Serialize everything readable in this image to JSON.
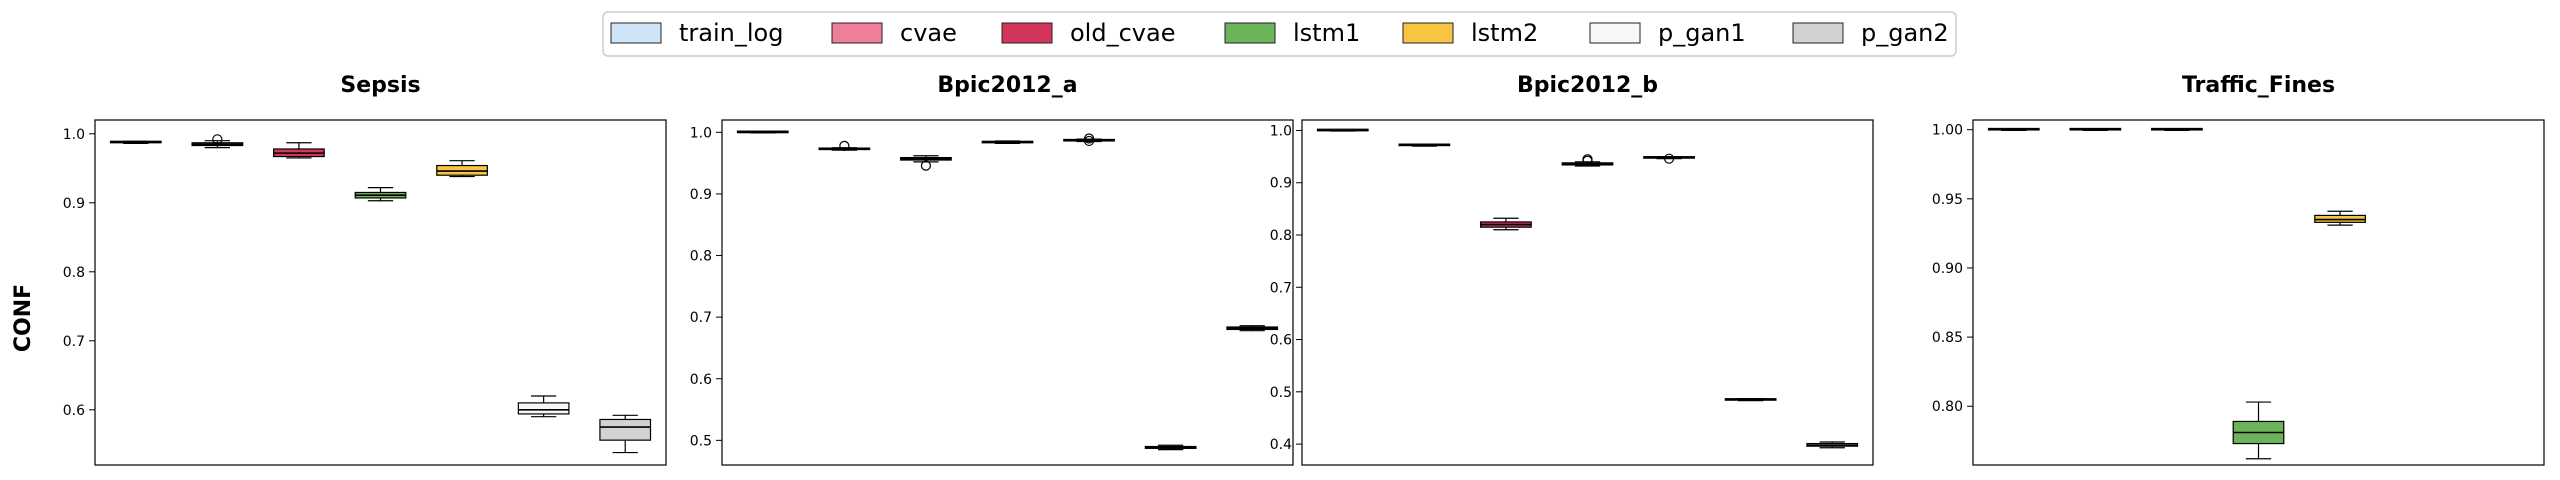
{
  "legend": {
    "position": "top-center",
    "entries": [
      {
        "name": "train_log",
        "color": "#cfe4f7"
      },
      {
        "name": "cvae",
        "color": "#ef7f99"
      },
      {
        "name": "old_cvae",
        "color": "#d3355b"
      },
      {
        "name": "lstm1",
        "color": "#6db35a"
      },
      {
        "name": "lstm2",
        "color": "#f8c542"
      },
      {
        "name": "p_gan1",
        "color": "#f7f7f7"
      },
      {
        "name": "p_gan2",
        "color": "#d2d2d2"
      }
    ]
  },
  "ylabel": "CONF",
  "chart_data": [
    {
      "type": "box",
      "title": "Sepsis",
      "ylim": [
        0.52,
        1.02
      ],
      "yticks": [
        "0.6",
        "0.7",
        "0.8",
        "0.9",
        "1.0"
      ],
      "boxes": [
        {
          "series": "train_log",
          "min": 0.986,
          "q1": 0.987,
          "median": 0.988,
          "q3": 0.988,
          "max": 0.989,
          "outliers": []
        },
        {
          "series": "cvae",
          "min": 0.98,
          "q1": 0.983,
          "median": 0.985,
          "q3": 0.987,
          "max": 0.99,
          "outliers": [
            0.992
          ]
        },
        {
          "series": "old_cvae",
          "min": 0.965,
          "q1": 0.967,
          "median": 0.972,
          "q3": 0.978,
          "max": 0.987,
          "outliers": []
        },
        {
          "series": "lstm1",
          "min": 0.903,
          "q1": 0.907,
          "median": 0.911,
          "q3": 0.915,
          "max": 0.922,
          "outliers": []
        },
        {
          "series": "lstm2",
          "min": 0.938,
          "q1": 0.94,
          "median": 0.946,
          "q3": 0.954,
          "max": 0.961,
          "outliers": []
        },
        {
          "series": "p_gan1",
          "min": 0.59,
          "q1": 0.594,
          "median": 0.6,
          "q3": 0.61,
          "max": 0.62,
          "outliers": []
        },
        {
          "series": "p_gan2",
          "min": 0.538,
          "q1": 0.556,
          "median": 0.575,
          "q3": 0.586,
          "max": 0.592,
          "outliers": []
        }
      ]
    },
    {
      "type": "box",
      "title": "Bpic2012_a",
      "ylim": [
        0.46,
        1.02
      ],
      "yticks": [
        "0.5",
        "0.6",
        "0.7",
        "0.8",
        "0.9",
        "1.0"
      ],
      "boxes": [
        {
          "series": "train_log",
          "min": 0.999,
          "q1": 0.9995,
          "median": 1.0,
          "q3": 1.0,
          "max": 1.0,
          "outliers": []
        },
        {
          "series": "cvae",
          "min": 0.971,
          "q1": 0.972,
          "median": 0.973,
          "q3": 0.974,
          "max": 0.975,
          "outliers": [
            0.978
          ]
        },
        {
          "series": "old_cvae",
          "min": 0.952,
          "q1": 0.955,
          "median": 0.957,
          "q3": 0.959,
          "max": 0.962,
          "outliers": [
            0.946
          ]
        },
        {
          "series": "lstm1",
          "min": 0.982,
          "q1": 0.983,
          "median": 0.984,
          "q3": 0.985,
          "max": 0.986,
          "outliers": []
        },
        {
          "series": "lstm2",
          "min": 0.985,
          "q1": 0.986,
          "median": 0.987,
          "q3": 0.988,
          "max": 0.989,
          "outliers": [
            0.986,
            0.99
          ]
        },
        {
          "series": "p_gan1",
          "min": 0.485,
          "q1": 0.487,
          "median": 0.488,
          "q3": 0.49,
          "max": 0.492,
          "outliers": []
        },
        {
          "series": "p_gan2",
          "min": 0.678,
          "q1": 0.68,
          "median": 0.682,
          "q3": 0.684,
          "max": 0.686,
          "outliers": []
        }
      ]
    },
    {
      "type": "box",
      "title": "Bpic2012_b",
      "ylim": [
        0.36,
        1.02
      ],
      "yticks": [
        "0.4",
        "0.5",
        "0.6",
        "0.7",
        "0.8",
        "0.9",
        "1.0"
      ],
      "boxes": [
        {
          "series": "train_log",
          "min": 0.999,
          "q1": 0.9995,
          "median": 1.0,
          "q3": 1.0,
          "max": 1.0,
          "outliers": []
        },
        {
          "series": "cvae",
          "min": 0.97,
          "q1": 0.971,
          "median": 0.972,
          "q3": 0.973,
          "max": 0.974,
          "outliers": []
        },
        {
          "series": "old_cvae",
          "min": 0.81,
          "q1": 0.815,
          "median": 0.82,
          "q3": 0.825,
          "max": 0.832,
          "outliers": []
        },
        {
          "series": "lstm1",
          "min": 0.932,
          "q1": 0.934,
          "median": 0.936,
          "q3": 0.938,
          "max": 0.94,
          "outliers": [
            0.942,
            0.945
          ]
        },
        {
          "series": "lstm2",
          "min": 0.946,
          "q1": 0.947,
          "median": 0.948,
          "q3": 0.949,
          "max": 0.95,
          "outliers": [
            0.946
          ]
        },
        {
          "series": "p_gan1",
          "min": 0.483,
          "q1": 0.484,
          "median": 0.485,
          "q3": 0.486,
          "max": 0.487,
          "outliers": []
        },
        {
          "series": "p_gan2",
          "min": 0.393,
          "q1": 0.396,
          "median": 0.398,
          "q3": 0.401,
          "max": 0.404,
          "outliers": []
        }
      ]
    },
    {
      "type": "box",
      "title": "Traffic_Fines",
      "ylim": [
        0.7575,
        1.007
      ],
      "yticks": [
        "0.80",
        "0.85",
        "0.90",
        "0.95",
        "1.00"
      ],
      "boxes": [
        {
          "series": "train_log",
          "min": 0.9995,
          "q1": 0.9998,
          "median": 1.0,
          "q3": 1.0,
          "max": 1.0,
          "outliers": []
        },
        {
          "series": "cvae",
          "min": 0.9995,
          "q1": 0.9998,
          "median": 1.0,
          "q3": 1.0,
          "max": 1.0,
          "outliers": []
        },
        {
          "series": "old_cvae",
          "min": 0.9995,
          "q1": 0.9998,
          "median": 1.0,
          "q3": 1.0,
          "max": 1.0,
          "outliers": []
        },
        {
          "series": "lstm1",
          "min": 0.762,
          "q1": 0.773,
          "median": 0.781,
          "q3": 0.789,
          "max": 0.803,
          "outliers": []
        },
        {
          "series": "lstm2",
          "min": 0.931,
          "q1": 0.933,
          "median": 0.935,
          "q3": 0.938,
          "max": 0.941,
          "outliers": []
        }
      ]
    }
  ]
}
